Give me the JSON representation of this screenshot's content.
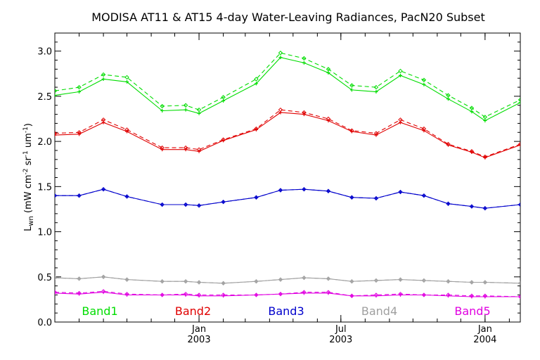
{
  "chart_data": {
    "type": "line",
    "title": "MODISA AT11 & AT15 4-day Water-Leaving Radiances, PacN20 Subset",
    "ylabel": {
      "base": "L",
      "sub": "wn",
      "open": "(mW cm",
      "sup1": "-2",
      "mid1": " sr",
      "sup2": "-1",
      "mid2": " um",
      "sup3": "-1",
      "close": ")"
    },
    "ylim": [
      0.0,
      3.2
    ],
    "yticks": [
      "0.0",
      "0.5",
      "1.0",
      "1.5",
      "2.0",
      "2.5",
      "3.0"
    ],
    "ytick_values": [
      0.0,
      0.5,
      1.0,
      1.5,
      2.0,
      2.5,
      3.0
    ],
    "xlim": [
      "2002-07-01",
      "2004-02-15"
    ],
    "xticks": [
      {
        "date": "2003-01-01",
        "month": "Jan",
        "year": "2003"
      },
      {
        "date": "2003-07-01",
        "month": "Jul",
        "year": "2003"
      },
      {
        "date": "2004-01-01",
        "month": "Jan",
        "year": "2004"
      }
    ],
    "legend_placement": "bottom",
    "grid": false,
    "x": [
      "2002-07-01",
      "2002-08-01",
      "2002-09-01",
      "2002-10-01",
      "2002-11-15",
      "2002-12-15",
      "2003-01-01",
      "2003-02-01",
      "2003-03-15",
      "2003-04-15",
      "2003-05-15",
      "2003-06-15",
      "2003-07-15",
      "2003-08-15",
      "2003-09-15",
      "2003-10-15",
      "2003-11-15",
      "2003-12-15",
      "2004-01-01",
      "2004-02-15"
    ],
    "series": [
      {
        "name": "Band1",
        "color": "#00dd00",
        "AT11": [
          2.51,
          2.55,
          2.69,
          2.66,
          2.34,
          2.35,
          2.31,
          2.45,
          2.64,
          2.93,
          2.87,
          2.76,
          2.57,
          2.55,
          2.73,
          2.63,
          2.47,
          2.33,
          2.23,
          2.43
        ],
        "AT15": [
          2.56,
          2.6,
          2.74,
          2.71,
          2.39,
          2.4,
          2.35,
          2.49,
          2.69,
          2.98,
          2.92,
          2.8,
          2.62,
          2.6,
          2.78,
          2.68,
          2.51,
          2.37,
          2.27,
          2.46
        ]
      },
      {
        "name": "Band2",
        "color": "#e00000",
        "AT11": [
          2.07,
          2.08,
          2.21,
          2.11,
          1.91,
          1.91,
          1.89,
          2.01,
          2.13,
          2.32,
          2.3,
          2.23,
          2.11,
          2.07,
          2.21,
          2.12,
          1.96,
          1.88,
          1.82,
          1.96
        ],
        "AT15": [
          2.09,
          2.1,
          2.24,
          2.13,
          1.93,
          1.93,
          1.91,
          2.02,
          2.14,
          2.35,
          2.32,
          2.25,
          2.12,
          2.09,
          2.24,
          2.14,
          1.97,
          1.89,
          1.83,
          1.97
        ]
      },
      {
        "name": "Band3",
        "color": "#0000cc",
        "AT11": [
          1.4,
          1.4,
          1.47,
          1.39,
          1.3,
          1.3,
          1.29,
          1.33,
          1.38,
          1.46,
          1.47,
          1.45,
          1.38,
          1.37,
          1.44,
          1.4,
          1.31,
          1.28,
          1.26,
          1.3
        ],
        "AT15": [
          1.4,
          1.4,
          1.47,
          1.39,
          1.3,
          1.3,
          1.29,
          1.33,
          1.38,
          1.46,
          1.47,
          1.45,
          1.38,
          1.37,
          1.44,
          1.4,
          1.31,
          1.28,
          1.26,
          1.3
        ]
      },
      {
        "name": "Band4",
        "color": "#a0a0a0",
        "AT11": [
          0.49,
          0.48,
          0.5,
          0.47,
          0.45,
          0.45,
          0.44,
          0.43,
          0.45,
          0.47,
          0.49,
          0.48,
          0.45,
          0.46,
          0.47,
          0.46,
          0.45,
          0.44,
          0.44,
          0.43
        ],
        "AT15": [
          0.49,
          0.48,
          0.5,
          0.47,
          0.45,
          0.45,
          0.44,
          0.43,
          0.45,
          0.47,
          0.49,
          0.48,
          0.45,
          0.46,
          0.47,
          0.46,
          0.45,
          0.44,
          0.44,
          0.43
        ]
      },
      {
        "name": "Band5",
        "color": "#e000e0",
        "AT11": [
          0.32,
          0.31,
          0.33,
          0.3,
          0.3,
          0.3,
          0.29,
          0.29,
          0.3,
          0.31,
          0.32,
          0.32,
          0.29,
          0.29,
          0.3,
          0.3,
          0.29,
          0.28,
          0.28,
          0.28
        ],
        "AT15": [
          0.33,
          0.32,
          0.34,
          0.31,
          0.3,
          0.31,
          0.3,
          0.3,
          0.3,
          0.31,
          0.33,
          0.33,
          0.29,
          0.3,
          0.31,
          0.3,
          0.3,
          0.29,
          0.29,
          0.28
        ]
      }
    ]
  }
}
